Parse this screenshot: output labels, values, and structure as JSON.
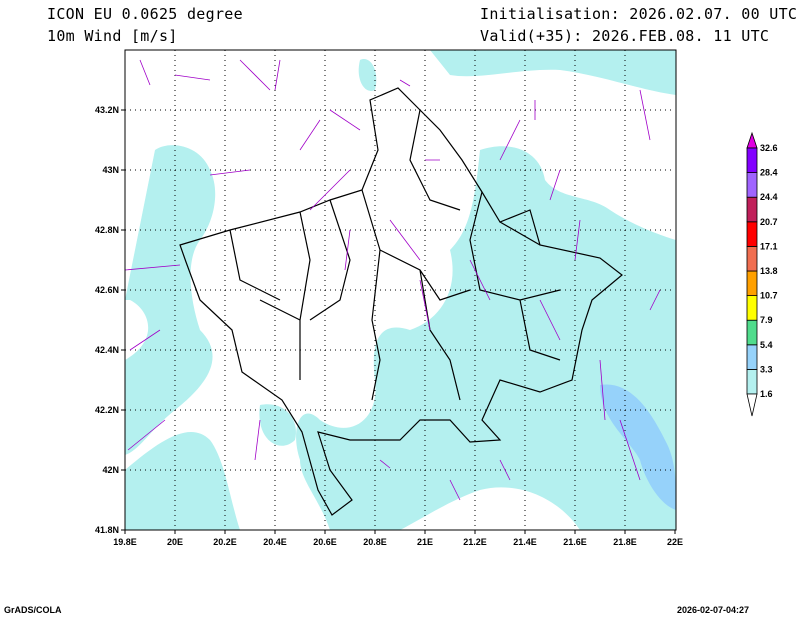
{
  "header": {
    "model": "ICON EU 0.0625 degree",
    "variable": "10m Wind [m/s]",
    "init": "Initialisation: 2026.02.07. 00 UTC",
    "valid": "Valid(+35): 2026.FEB.08. 11 UTC"
  },
  "map": {
    "lon_range": [
      19.8,
      22.0
    ],
    "lat_range": [
      41.8,
      43.4
    ],
    "lon_labels": [
      "19.8E",
      "20E",
      "20.2E",
      "20.4E",
      "20.6E",
      "20.8E",
      "21E",
      "21.2E",
      "21.4E",
      "21.6E",
      "21.8E",
      "22E"
    ],
    "lat_labels": [
      "41.8N",
      "42N",
      "42.2N",
      "42.4N",
      "42.6N",
      "42.8N",
      "43N",
      "43.2N"
    ],
    "vector_color": "#a000c8"
  },
  "colorbar": {
    "labels": [
      "1.6",
      "3.3",
      "5.4",
      "7.9",
      "10.7",
      "13.8",
      "17.1",
      "20.7",
      "24.4",
      "28.4",
      "32.6"
    ],
    "colors": [
      "#ffffff",
      "#b4f0ef",
      "#96d2fa",
      "#50dc8c",
      "#ffff00",
      "#ffa000",
      "#f06e50",
      "#ff0000",
      "#c0205a",
      "#a064ff",
      "#8200ff",
      "#e100e1"
    ]
  },
  "footer": {
    "left": "GrADS/COLA",
    "right": "2026-02-07-04:27"
  }
}
